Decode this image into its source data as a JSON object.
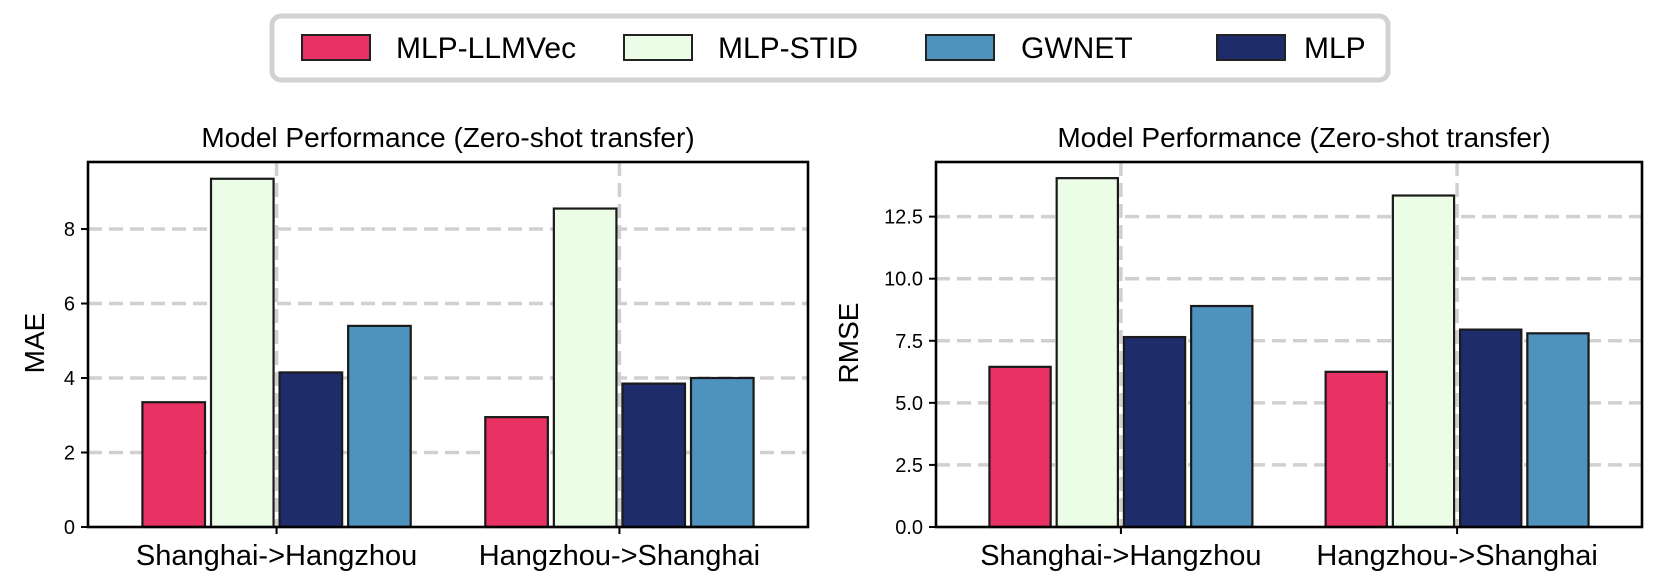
{
  "legend": {
    "entries": [
      {
        "label": "MLP-LLMVec",
        "color": "#E83263"
      },
      {
        "label": "MLP-STID",
        "color": "#EBFDE6"
      },
      {
        "label": "GWNET",
        "color": "#4D93BD"
      },
      {
        "label": "MLP",
        "color": "#1F2C6B"
      }
    ]
  },
  "chart_data": [
    {
      "type": "bar",
      "title": "Model Performance (Zero-shot transfer)",
      "xlabel": "",
      "ylabel": "MAE",
      "categories": [
        "Shanghai->Hangzhou",
        "Hangzhou->Shanghai"
      ],
      "ylim": [
        0,
        9.8
      ],
      "yticks": [
        0,
        2,
        4,
        6,
        8
      ],
      "ytick_labels": [
        "0",
        "2",
        "4",
        "6",
        "8"
      ],
      "grid": true,
      "bar_order": [
        "MLP-LLMVec",
        "MLP-STID",
        "MLP",
        "GWNET"
      ],
      "series": [
        {
          "name": "MLP-LLMVec",
          "color": "#E83263",
          "values": [
            3.35,
            2.95
          ]
        },
        {
          "name": "MLP-STID",
          "color": "#EBFDE6",
          "values": [
            9.35,
            8.55
          ]
        },
        {
          "name": "MLP",
          "color": "#1F2C6B",
          "values": [
            4.15,
            3.85
          ]
        },
        {
          "name": "GWNET",
          "color": "#4D93BD",
          "values": [
            5.4,
            4.0
          ]
        }
      ]
    },
    {
      "type": "bar",
      "title": "Model Performance (Zero-shot transfer)",
      "xlabel": "",
      "ylabel": "RMSE",
      "categories": [
        "Shanghai->Hangzhou",
        "Hangzhou->Shanghai"
      ],
      "ylim": [
        0,
        14.7
      ],
      "yticks": [
        0,
        2.5,
        5,
        7.5,
        10,
        12.5
      ],
      "ytick_labels": [
        "0.0",
        "2.5",
        "5.0",
        "7.5",
        "10.0",
        "12.5"
      ],
      "grid": true,
      "bar_order": [
        "MLP-LLMVec",
        "MLP-STID",
        "MLP",
        "GWNET"
      ],
      "series": [
        {
          "name": "MLP-LLMVec",
          "color": "#E83263",
          "values": [
            6.45,
            6.25
          ]
        },
        {
          "name": "MLP-STID",
          "color": "#EBFDE6",
          "values": [
            14.05,
            13.35
          ]
        },
        {
          "name": "MLP",
          "color": "#1F2C6B",
          "values": [
            7.65,
            7.95
          ]
        },
        {
          "name": "GWNET",
          "color": "#4D93BD",
          "values": [
            8.9,
            7.8
          ]
        }
      ]
    }
  ]
}
